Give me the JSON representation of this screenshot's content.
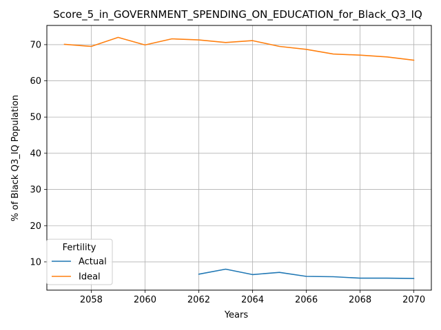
{
  "chart_data": {
    "type": "line",
    "title": "Score_5_in_GOVERNMENT_SPENDING_ON_EDUCATION_for_Black_Q3_IQ",
    "xlabel": "Years",
    "ylabel": "% of Black Q3_IQ Population",
    "xlim": [
      2056.35,
      2070.65
    ],
    "ylim": [
      2.2,
      75.3
    ],
    "xticks": [
      2058,
      2060,
      2062,
      2064,
      2066,
      2068,
      2070
    ],
    "yticks": [
      10,
      20,
      30,
      40,
      50,
      60,
      70
    ],
    "grid": true,
    "legend": {
      "title": "Fertility",
      "position": "lower left"
    },
    "series": [
      {
        "name": "Actual",
        "color": "#1f77b4",
        "x": [
          2062,
          2063,
          2064,
          2065,
          2066,
          2067,
          2068,
          2069,
          2070
        ],
        "y": [
          6.6,
          8.0,
          6.5,
          7.1,
          6.0,
          5.9,
          5.5,
          5.5,
          5.4
        ]
      },
      {
        "name": "Ideal",
        "color": "#ff7f0e",
        "x": [
          2057,
          2058,
          2059,
          2060,
          2061,
          2062,
          2063,
          2064,
          2065,
          2066,
          2067,
          2068,
          2069,
          2070
        ],
        "y": [
          70.1,
          69.5,
          72.0,
          69.9,
          71.6,
          71.3,
          70.6,
          71.1,
          69.5,
          68.7,
          67.4,
          67.1,
          66.6,
          65.7
        ]
      }
    ]
  }
}
